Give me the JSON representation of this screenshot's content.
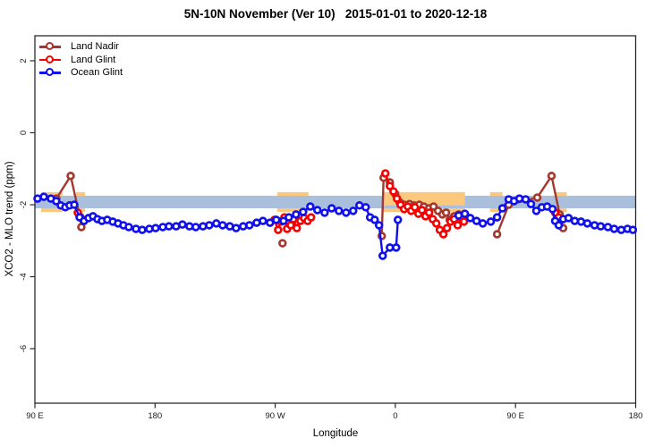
{
  "chart_data": {
    "type": "scatter",
    "title": "5N-10N November (Ver 10)   2015-01-01 to 2020-12-18",
    "xlabel": "Longitude",
    "ylabel": "XCO2 - MLO trend (ppm)",
    "xlim": [
      90,
      540
    ],
    "ylim": [
      -7.5,
      2.7
    ],
    "grid": false,
    "legend_position": "top-left",
    "x_ticks": [
      {
        "lon": 90,
        "label": "90 E"
      },
      {
        "lon": 180,
        "label": "180"
      },
      {
        "lon": 270,
        "label": "90 W"
      },
      {
        "lon": 360,
        "label": "0"
      },
      {
        "lon": 450,
        "label": "90 E"
      },
      {
        "lon": 540,
        "label": "180"
      }
    ],
    "y_ticks": [
      {
        "v": 2,
        "label": "2"
      },
      {
        "v": 0,
        "label": "0"
      },
      {
        "v": -2,
        "label": "-2"
      },
      {
        "v": -4,
        "label": "-4"
      },
      {
        "v": -6,
        "label": "-6"
      }
    ],
    "bands": {
      "blue_band": {
        "color": "#aabfdc",
        "x": [
          90,
          540
        ],
        "y": [
          -1.75,
          -2.1
        ]
      },
      "orange_band": {
        "color": "#fcc87e",
        "y": [
          -1.65,
          -2.2
        ],
        "segments": [
          [
            94.7,
            110.8
          ],
          [
            120.8,
            127.5
          ],
          [
            271.5,
            294.9
          ],
          [
            350.5,
            412.1
          ],
          [
            430.9,
            440.2
          ],
          [
            480.4,
            488.4
          ]
        ],
        "overlay_segments": [
          [
            350.5,
            412.1
          ]
        ],
        "overlay_y": [
          -1.65,
          -2.02
        ]
      }
    },
    "series": [
      {
        "name": "Land Nadir",
        "color": "#a3382f",
        "groups": [
          [
            [
              106.1,
              -1.83
            ],
            [
              116.8,
              -1.2
            ],
            [
              123.5,
              -2.32
            ],
            [
              124.8,
              -2.62
            ]
          ],
          [
            [
              275.5,
              -3.07
            ]
          ],
          [
            [
              349.8,
              -2.87
            ],
            [
              351.2,
              -1.25
            ],
            [
              355.9,
              -1.38
            ],
            [
              359.9,
              -1.7
            ],
            [
              363.2,
              -1.93
            ],
            [
              366.6,
              -2.0
            ],
            [
              370.6,
              -1.98
            ],
            [
              373.9,
              -2.02
            ],
            [
              377.9,
              -2.0
            ],
            [
              381.3,
              -2.05
            ],
            [
              385.3,
              -2.1
            ],
            [
              388.6,
              -2.05
            ],
            [
              392.0,
              -2.17
            ],
            [
              395.3,
              -2.27
            ],
            [
              398.0,
              -2.22
            ],
            [
              400.7,
              -2.42
            ],
            [
              404.0,
              -2.32
            ],
            [
              407.4,
              -2.27
            ],
            [
              411.4,
              -2.35
            ]
          ],
          [
            [
              436.2,
              -2.82
            ],
            [
              444.9,
              -2.0
            ],
            [
              466.3,
              -1.8
            ],
            [
              477.0,
              -1.2
            ],
            [
              483.1,
              -2.27
            ],
            [
              485.7,
              -2.65
            ]
          ]
        ]
      },
      {
        "name": "Land Glint",
        "color": "#f80000",
        "groups": [
          [
            [
              122.1,
              -2.22
            ],
            [
              124.2,
              -2.35
            ]
          ],
          [
            [
              269.5,
              -2.42
            ],
            [
              272.2,
              -2.7
            ],
            [
              274.2,
              -2.47
            ],
            [
              276.9,
              -2.35
            ],
            [
              278.9,
              -2.67
            ],
            [
              281.6,
              -2.57
            ],
            [
              283.6,
              -2.4
            ],
            [
              286.2,
              -2.65
            ],
            [
              288.9,
              -2.45
            ],
            [
              291.6,
              -2.37
            ],
            [
              294.3,
              -2.45
            ],
            [
              296.9,
              -2.35
            ]
          ],
          [
            [
              352.5,
              -1.13
            ],
            [
              355.9,
              -1.48
            ],
            [
              358.6,
              -1.63
            ],
            [
              361.2,
              -1.83
            ],
            [
              363.9,
              -2.0
            ],
            [
              366.6,
              -2.12
            ],
            [
              369.3,
              -2.05
            ],
            [
              371.9,
              -2.17
            ],
            [
              374.6,
              -2.07
            ],
            [
              377.3,
              -2.25
            ],
            [
              380.0,
              -2.15
            ],
            [
              382.6,
              -2.32
            ],
            [
              385.3,
              -2.22
            ],
            [
              388.0,
              -2.4
            ],
            [
              390.7,
              -2.52
            ],
            [
              393.3,
              -2.7
            ],
            [
              396.0,
              -2.82
            ],
            [
              398.7,
              -2.65
            ],
            [
              401.4,
              -2.47
            ],
            [
              404.0,
              -2.4
            ],
            [
              406.7,
              -2.57
            ],
            [
              409.4,
              -2.37
            ],
            [
              411.4,
              -2.47
            ]
          ],
          [
            [
              479.7,
              -2.22
            ],
            [
              482.4,
              -2.35
            ]
          ]
        ]
      },
      {
        "name": "Ocean Glint",
        "color": "#1010ee",
        "groups": [
          [
            [
              92.0,
              -1.83
            ],
            [
              96.7,
              -1.78
            ],
            [
              102.0,
              -1.83
            ],
            [
              106.0,
              -1.9
            ],
            [
              109.4,
              -2.02
            ],
            [
              112.8,
              -2.07
            ],
            [
              116.0,
              -2.02
            ],
            [
              119.5,
              -2.0
            ],
            [
              123.5,
              -2.35
            ],
            [
              126.8,
              -2.45
            ],
            [
              130.2,
              -2.37
            ],
            [
              133.5,
              -2.32
            ],
            [
              136.9,
              -2.4
            ],
            [
              140.2,
              -2.45
            ],
            [
              144.2,
              -2.42
            ],
            [
              148.3,
              -2.47
            ],
            [
              152.3,
              -2.52
            ],
            [
              156.3,
              -2.57
            ],
            [
              160.3,
              -2.62
            ],
            [
              165.7,
              -2.67
            ],
            [
              170.4,
              -2.7
            ],
            [
              175.7,
              -2.67
            ],
            [
              180.4,
              -2.65
            ],
            [
              185.8,
              -2.62
            ],
            [
              190.4,
              -2.6
            ],
            [
              195.8,
              -2.6
            ],
            [
              200.5,
              -2.55
            ],
            [
              205.8,
              -2.6
            ],
            [
              210.5,
              -2.62
            ],
            [
              215.9,
              -2.6
            ],
            [
              220.6,
              -2.57
            ],
            [
              225.9,
              -2.52
            ],
            [
              230.6,
              -2.57
            ],
            [
              236.0,
              -2.6
            ],
            [
              240.7,
              -2.65
            ],
            [
              246.0,
              -2.6
            ],
            [
              250.7,
              -2.57
            ],
            [
              256.1,
              -2.5
            ],
            [
              260.8,
              -2.45
            ],
            [
              266.1,
              -2.5
            ],
            [
              270.8,
              -2.42
            ],
            [
              276.2,
              -2.45
            ],
            [
              280.2,
              -2.35
            ],
            [
              285.6,
              -2.27
            ],
            [
              290.9,
              -2.2
            ],
            [
              296.3,
              -2.05
            ],
            [
              301.6,
              -2.15
            ],
            [
              307.0,
              -2.22
            ],
            [
              312.3,
              -2.1
            ],
            [
              317.7,
              -2.17
            ],
            [
              323.1,
              -2.22
            ],
            [
              328.4,
              -2.17
            ],
            [
              333.1,
              -2.02
            ],
            [
              337.8,
              -2.07
            ],
            [
              341.1,
              -2.35
            ],
            [
              344.5,
              -2.42
            ],
            [
              347.8,
              -2.57
            ],
            [
              350.5,
              -3.42
            ],
            [
              355.9,
              -3.19
            ],
            [
              360.6,
              -3.19
            ],
            [
              361.9,
              -2.42
            ]
          ],
          [
            [
              407.4,
              -2.3
            ],
            [
              412.1,
              -2.25
            ],
            [
              416.1,
              -2.37
            ],
            [
              420.8,
              -2.45
            ],
            [
              425.5,
              -2.52
            ],
            [
              431.5,
              -2.47
            ],
            [
              436.2,
              -2.35
            ],
            [
              440.2,
              -2.1
            ],
            [
              444.9,
              -1.85
            ],
            [
              448.9,
              -1.9
            ],
            [
              452.9,
              -1.83
            ],
            [
              457.6,
              -1.85
            ],
            [
              461.6,
              -1.98
            ],
            [
              465.6,
              -2.17
            ],
            [
              469.7,
              -2.07
            ],
            [
              473.7,
              -2.05
            ],
            [
              477.7,
              -2.12
            ],
            [
              479.7,
              -2.45
            ],
            [
              482.4,
              -2.57
            ],
            [
              485.7,
              -2.4
            ],
            [
              489.7,
              -2.37
            ],
            [
              494.4,
              -2.45
            ],
            [
              499.1,
              -2.47
            ],
            [
              503.8,
              -2.52
            ],
            [
              509.2,
              -2.57
            ],
            [
              513.8,
              -2.6
            ],
            [
              519.2,
              -2.62
            ],
            [
              523.9,
              -2.67
            ],
            [
              529.2,
              -2.7
            ],
            [
              533.9,
              -2.67
            ],
            [
              537.9,
              -2.7
            ]
          ]
        ]
      }
    ],
    "legend": [
      {
        "label": "Land Nadir"
      },
      {
        "label": "Land Glint"
      },
      {
        "label": "Ocean Glint"
      }
    ]
  }
}
